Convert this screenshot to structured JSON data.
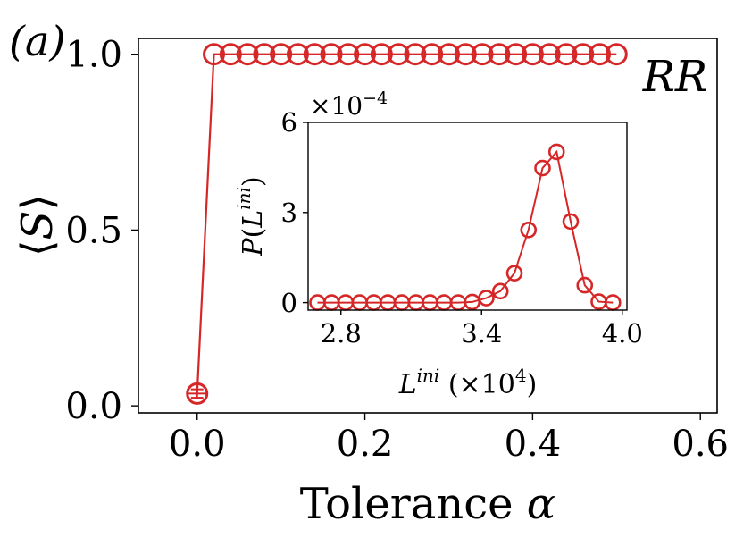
{
  "panel_label": "(a)",
  "corner_label": "RR",
  "chart_data": [
    {
      "type": "line",
      "title": "",
      "xlabel": "Tolerance α",
      "ylabel": "⟨S⟩",
      "xlim": [
        -0.07,
        0.62
      ],
      "ylim": [
        -0.02,
        1.045
      ],
      "xticks": [
        0.0,
        0.2,
        0.4,
        0.6
      ],
      "xtick_labels": [
        "0.0",
        "0.2",
        "0.4",
        "0.6"
      ],
      "yticks": [
        0.0,
        0.5,
        1.0
      ],
      "ytick_labels": [
        "0.0",
        "0.5",
        "1.0"
      ],
      "grid": false,
      "legend": "none",
      "marker": "open-circle",
      "color": "#d62728",
      "series": [
        {
          "x": [
            0.0,
            0.02,
            0.04,
            0.06,
            0.08,
            0.1,
            0.12,
            0.14,
            0.16,
            0.18,
            0.2,
            0.22,
            0.24,
            0.26,
            0.28,
            0.3,
            0.32,
            0.34,
            0.36,
            0.38,
            0.4,
            0.42,
            0.44,
            0.46,
            0.48,
            0.5
          ],
          "values": [
            0.035,
            1.0,
            1.0,
            1.0,
            1.0,
            1.0,
            1.0,
            1.0,
            1.0,
            1.0,
            1.0,
            1.0,
            1.0,
            1.0,
            1.0,
            1.0,
            1.0,
            1.0,
            1.0,
            1.0,
            1.0,
            1.0,
            1.0,
            1.0,
            1.0,
            1.0
          ],
          "error": [
            0.012,
            0,
            0,
            0,
            0,
            0,
            0,
            0,
            0,
            0,
            0,
            0,
            0,
            0,
            0,
            0,
            0,
            0,
            0,
            0,
            0,
            0,
            0,
            0,
            0,
            0
          ]
        }
      ]
    },
    {
      "type": "line",
      "title": "",
      "xlabel": "L^ini (×10^4)",
      "ylabel": "P(L^ini)",
      "scale_label": "×10^−4",
      "xlim": [
        2.66,
        4.02
      ],
      "ylim": [
        -0.25,
        6.0
      ],
      "xticks": [
        2.8,
        3.4,
        4.0
      ],
      "xtick_labels": [
        "2.8",
        "3.4",
        "4.0"
      ],
      "yticks": [
        0,
        3,
        6
      ],
      "ytick_labels": [
        "0",
        "3",
        "6"
      ],
      "grid": false,
      "legend": "none",
      "marker": "open-circle",
      "color": "#d62728",
      "series": [
        {
          "x": [
            2.7,
            2.76,
            2.82,
            2.88,
            2.94,
            3.0,
            3.06,
            3.12,
            3.18,
            3.24,
            3.3,
            3.36,
            3.42,
            3.48,
            3.54,
            3.6,
            3.66,
            3.72,
            3.78,
            3.84,
            3.9,
            3.96
          ],
          "values": [
            0,
            0,
            0,
            0,
            0,
            0,
            0,
            0,
            0,
            0,
            0,
            0.02,
            0.15,
            0.38,
            0.98,
            2.42,
            4.48,
            5.02,
            2.7,
            0.58,
            0.03,
            0
          ]
        }
      ]
    }
  ]
}
